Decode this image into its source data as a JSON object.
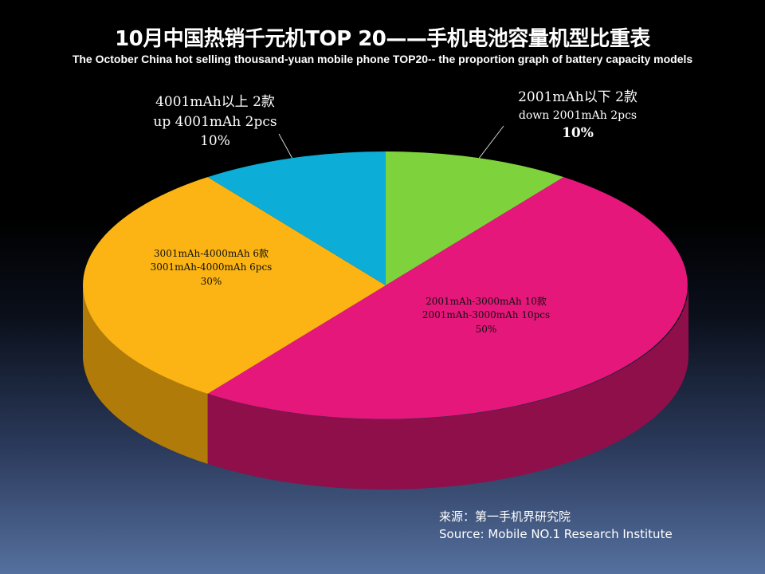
{
  "chart_data": {
    "type": "pie",
    "title": "10月中国热销千元机TOP 20——手机电池容量机型比重表",
    "subtitle": "The October China hot selling thousand-yuan mobile phone TOP20-- the proportion graph of battery capacity models",
    "slices": [
      {
        "line1": "2001mAh以下 2款",
        "line2": "down 2001mAh 2pcs",
        "pct_label": "10%",
        "value": 10,
        "color": "#7ed23c",
        "side_color": "#4e8a22"
      },
      {
        "line1": "2001mAh-3000mAh 10款",
        "line2": "2001mAh-3000mAh 10pcs",
        "pct_label": "50%",
        "value": 50,
        "color": "#e5177a",
        "side_color": "#8f0f4b"
      },
      {
        "line1": "3001mAh-4000mAh 6款",
        "line2": "3001mAh-4000mAh 6pcs",
        "pct_label": "30%",
        "value": 30,
        "color": "#fbb413",
        "side_color": "#b07b08"
      },
      {
        "line1": "4001mAh以上 2款",
        "line2": "up 4001mAh 2pcs",
        "pct_label": "10%",
        "value": 10,
        "color": "#0cadd6",
        "side_color": "#067896"
      }
    ],
    "legend": "none"
  },
  "source": {
    "line1": "来源：第一手机界研究院",
    "line2": "Source: Mobile NO.1 Research Institute"
  }
}
